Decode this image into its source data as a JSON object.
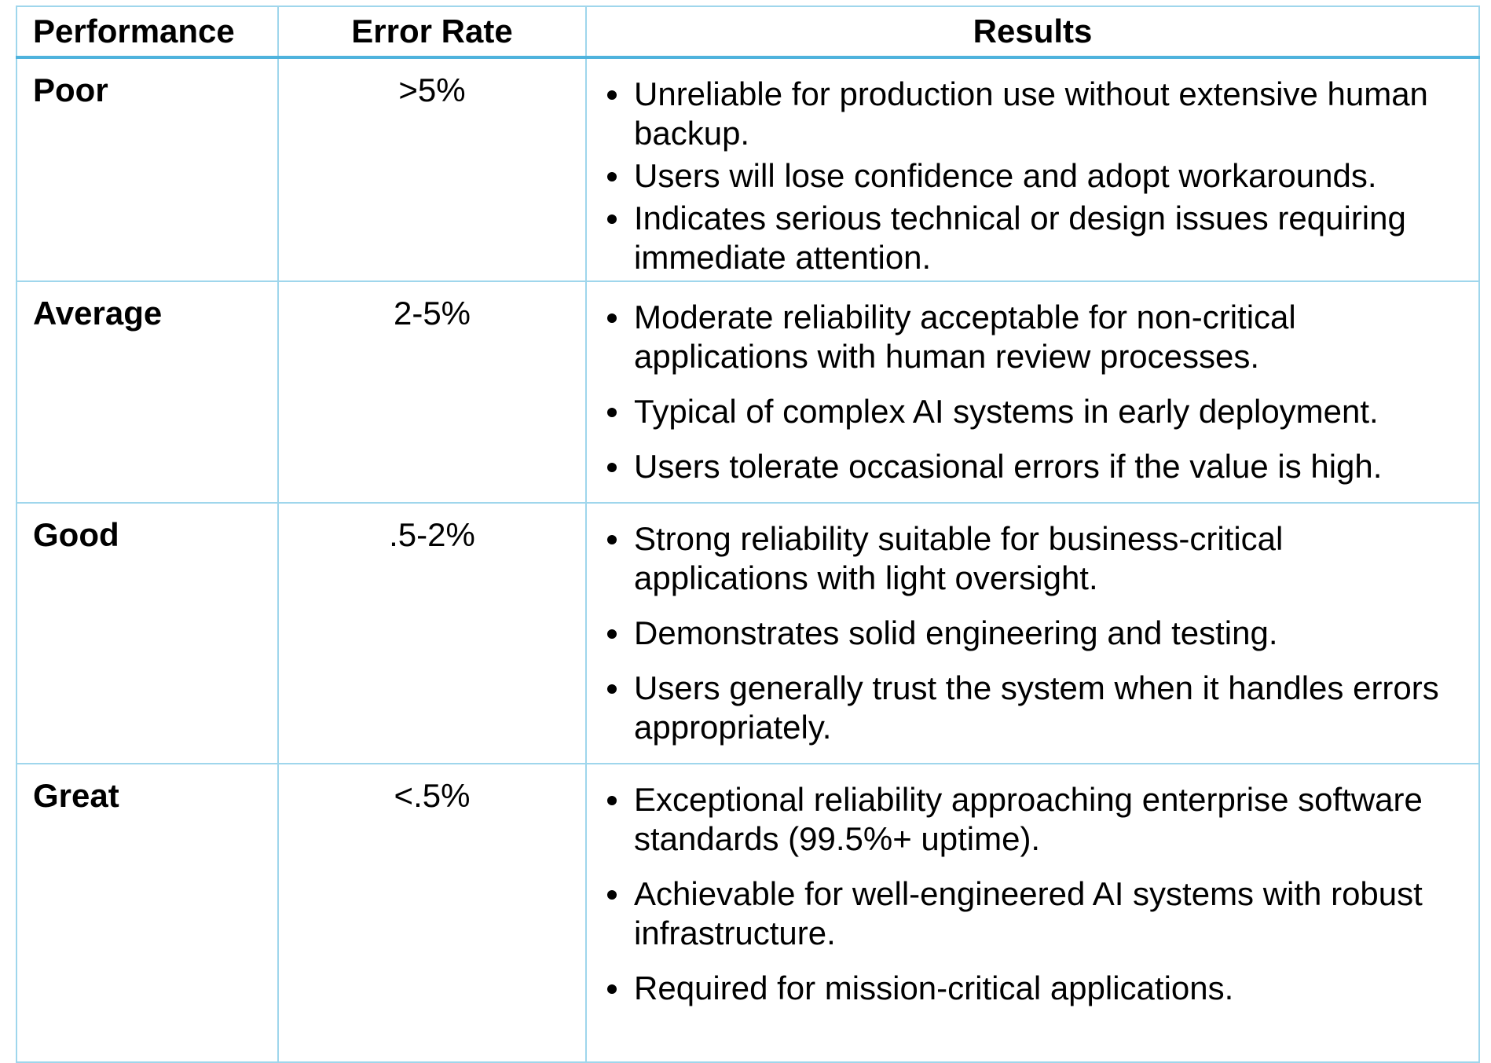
{
  "table": {
    "headers": {
      "performance": "Performance",
      "error_rate": "Error Rate",
      "results": "Results"
    },
    "rows": [
      {
        "performance": "Poor",
        "error_rate": ">5%",
        "results": [
          "Unreliable for production use without extensive human backup.",
          "Users will lose confidence and adopt workarounds.",
          "Indicates serious technical or design issues requiring immediate attention."
        ]
      },
      {
        "performance": "Average",
        "error_rate": "2-5%",
        "results": [
          "Moderate reliability acceptable for non-critical applications with human review processes.",
          "Typical of complex AI systems in early deployment.",
          "Users tolerate occasional errors if the value is high."
        ]
      },
      {
        "performance": "Good",
        "error_rate": ".5-2%",
        "results": [
          "Strong reliability suitable for business-critical applications with light oversight.",
          "Demonstrates solid engineering and testing.",
          "Users generally trust the system when it handles errors appropriately."
        ]
      },
      {
        "performance": "Great",
        "error_rate": "<.5%",
        "results": [
          "Exceptional reliability approaching enterprise software standards (99.5%+ uptime).",
          "Achievable for well-engineered AI systems with robust infrastructure.",
          "Required for mission-critical applications."
        ]
      }
    ]
  },
  "colors": {
    "border": "#9fd6ec",
    "header_rule": "#4fb3dd"
  }
}
